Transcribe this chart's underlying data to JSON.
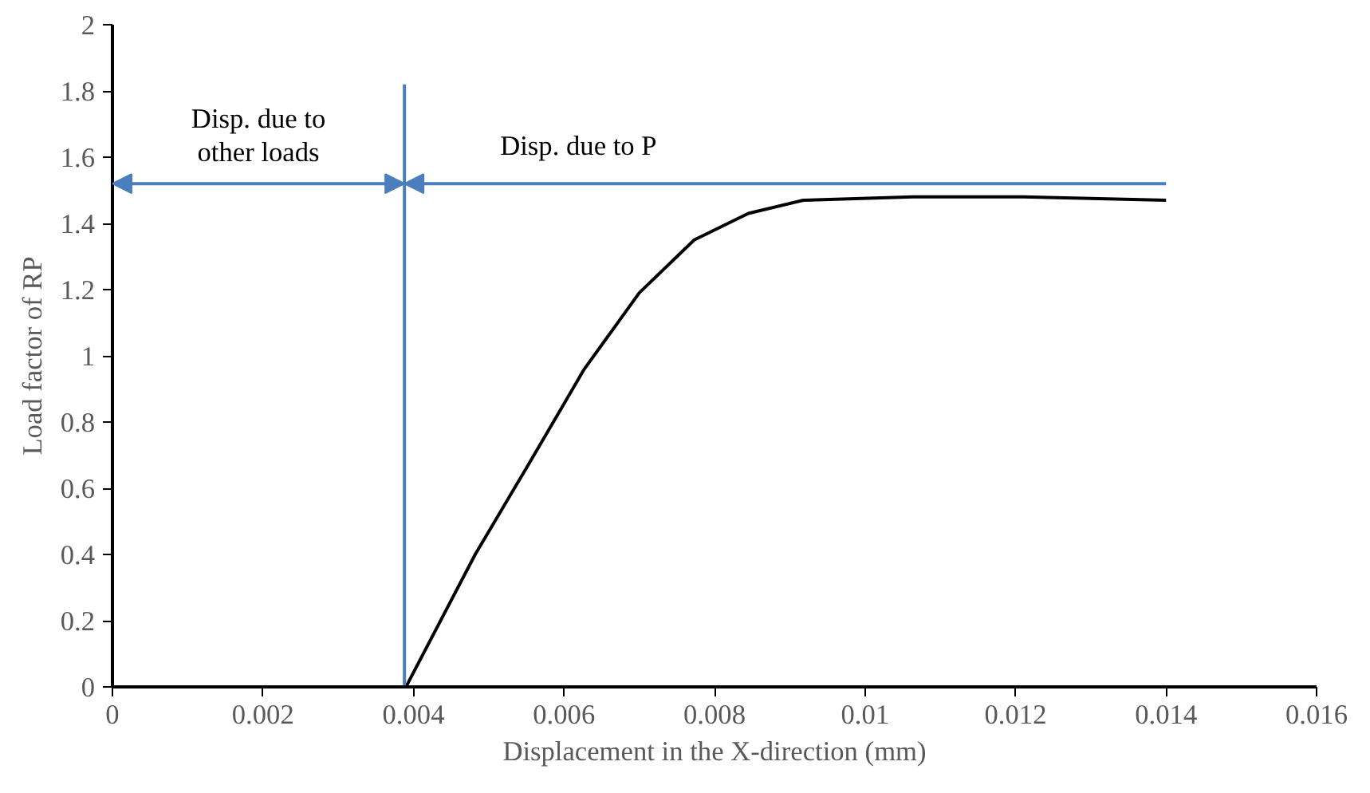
{
  "chart_data": {
    "type": "line",
    "xlabel": "Displacement in the X-direction (mm)",
    "ylabel": "Load factor of RP",
    "xlim": [
      0,
      0.016
    ],
    "ylim": [
      0,
      2
    ],
    "xticks": [
      0,
      0.002,
      0.004,
      0.006,
      0.008,
      0.01,
      0.012,
      0.014,
      0.016
    ],
    "yticks": [
      0,
      0.2,
      0.4,
      0.6,
      0.8,
      1,
      1.2,
      1.4,
      1.6,
      1.8,
      2
    ],
    "grid": false,
    "marker": "none",
    "line_style": "solid",
    "series": [
      {
        "color": "#000000",
        "x": [
          0.0039,
          0.00482,
          0.00555,
          0.00627,
          0.007,
          0.00773,
          0.00845,
          0.00918,
          0.01064,
          0.0121,
          0.014
        ],
        "values": [
          0,
          0.4,
          0.68,
          0.96,
          1.19,
          1.35,
          1.43,
          1.47,
          1.48,
          1.48,
          1.47
        ]
      },
      {
        "color": "#4a7ebf",
        "x": [
          0.00388,
          0.00388
        ],
        "values": [
          0,
          1.82
        ]
      }
    ],
    "annotations": [
      "Disp. due to\nother loads",
      "Disp. due to P"
    ]
  }
}
